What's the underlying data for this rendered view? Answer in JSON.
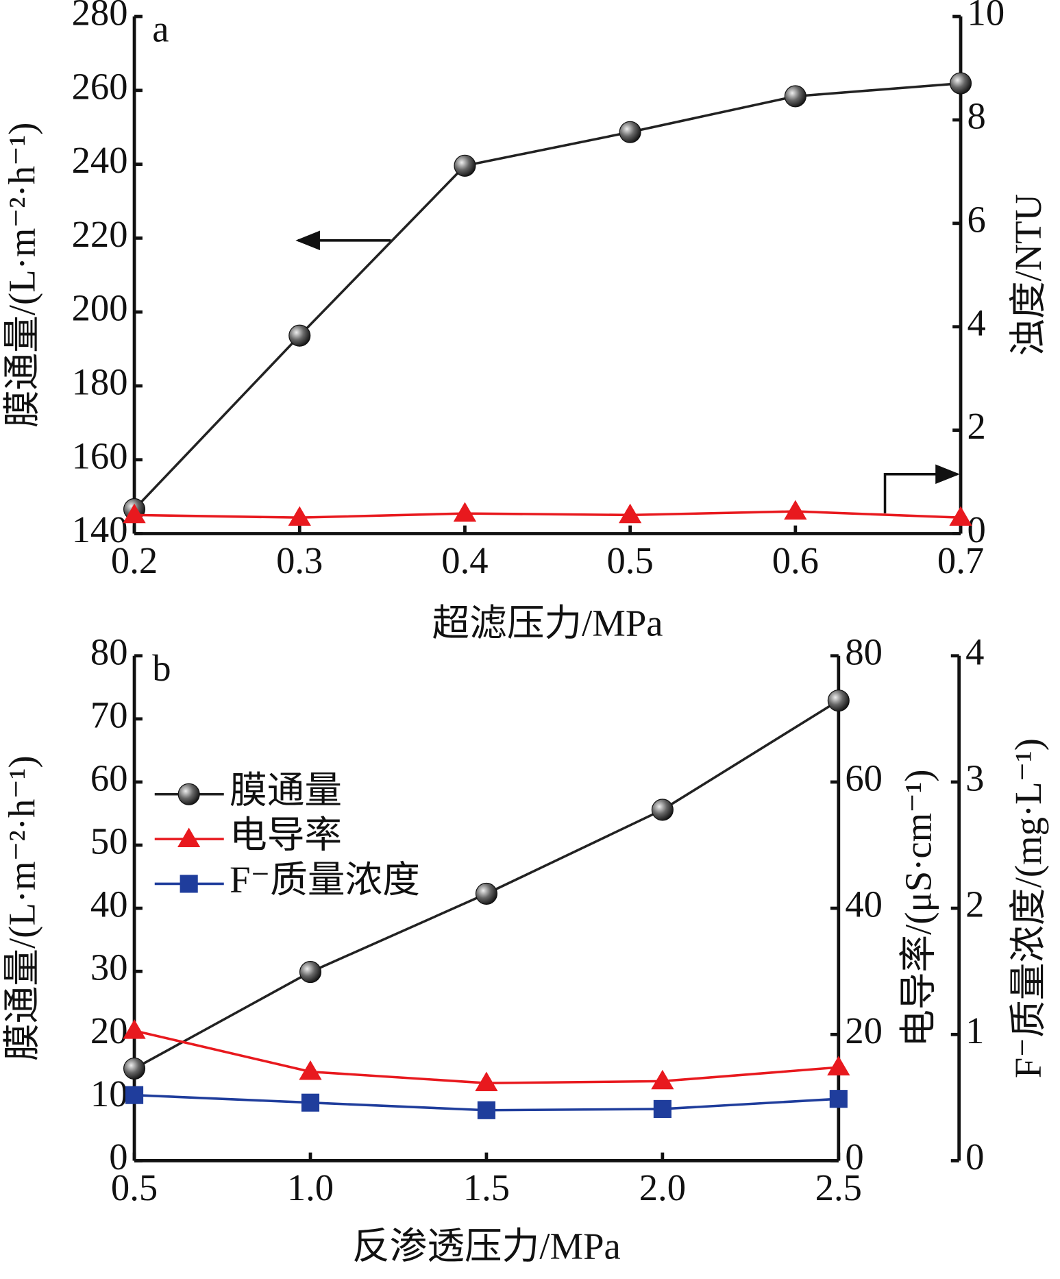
{
  "chart_data": [
    {
      "type": "line",
      "panel_label": "a",
      "x_label": "超滤压力/MPa",
      "y_label": "膜通量/(L·m⁻²·h⁻¹)",
      "y2_label": "浊度/NTU",
      "x": [
        0.2,
        0.3,
        0.4,
        0.5,
        0.6,
        0.7
      ],
      "xlim": [
        0.2,
        0.7
      ],
      "xticks": [
        0.2,
        0.3,
        0.4,
        0.5,
        0.6,
        0.7
      ],
      "ylim": [
        140,
        280
      ],
      "yticks": [
        140,
        160,
        180,
        200,
        220,
        240,
        260,
        280
      ],
      "y2lim": [
        0,
        10
      ],
      "y2ticks": [
        0,
        2,
        4,
        6,
        8,
        10
      ],
      "series": [
        {
          "name": "膜通量",
          "color": "#222222",
          "marker": "circle",
          "values": [
            146.6,
            193.6,
            239.6,
            248.7,
            258.4,
            261.9
          ]
        },
        {
          "name": "浊度",
          "color": "#e8191e",
          "marker": "triangle",
          "axis": "y2",
          "values": [
            0.36,
            0.31,
            0.39,
            0.36,
            0.43,
            0.31
          ]
        }
      ]
    },
    {
      "type": "line",
      "panel_label": "b",
      "x_label": "反渗透压力/MPa",
      "y_label": "膜通量/(L·m⁻²·h⁻¹)",
      "y2_label": "电导率/(μS·cm⁻¹)",
      "y3_label": "F⁻质量浓度/(mg·L⁻¹)",
      "x": [
        0.5,
        1.0,
        1.5,
        2.0,
        2.5
      ],
      "xlim": [
        0.5,
        2.5
      ],
      "xticks": [
        {
          "value": 0.5,
          "label": "0.5"
        },
        {
          "value": 1,
          "label": "1.0"
        },
        {
          "value": 1.5,
          "label": "1.5"
        },
        {
          "value": 2,
          "label": "2.0"
        },
        {
          "value": 2.5,
          "label": "2.5"
        }
      ],
      "ylim": [
        0,
        80
      ],
      "yticks": [
        0,
        10,
        20,
        30,
        40,
        50,
        60,
        70,
        80
      ],
      "y2lim": [
        0,
        80
      ],
      "y2ticks": [
        0,
        20,
        40,
        60,
        80
      ],
      "y3lim": [
        0,
        4
      ],
      "y3ticks": [
        0,
        1,
        2,
        3,
        4
      ],
      "legend": "upper left",
      "series": [
        {
          "name": "膜通量",
          "color": "#222222",
          "marker": "circle",
          "values": [
            14.6,
            29.9,
            42.3,
            55.6,
            72.9
          ]
        },
        {
          "name": "电导率",
          "color": "#e8191e",
          "marker": "triangle",
          "axis": "y2",
          "values": [
            20.6,
            14.1,
            12.3,
            12.6,
            14.8
          ]
        },
        {
          "name": "F⁻质量浓度",
          "color": "#1f3d9c",
          "marker": "square",
          "axis": "y3",
          "values": [
            0.52,
            0.46,
            0.4,
            0.41,
            0.49
          ]
        }
      ]
    }
  ]
}
